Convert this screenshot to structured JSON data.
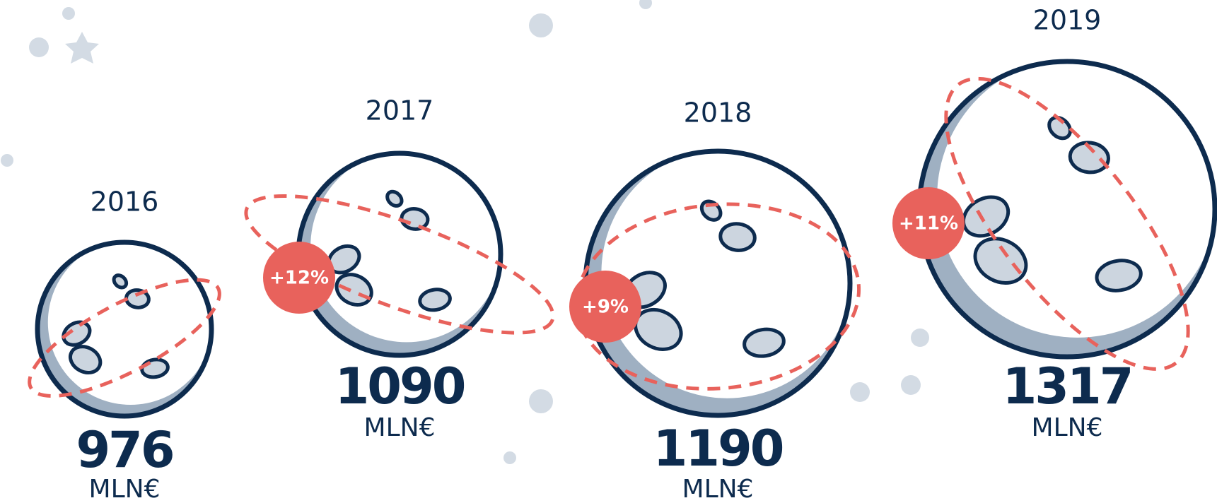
{
  "items": [
    {
      "year": "2016",
      "value": "976",
      "unit": "MLN€"
    },
    {
      "year": "2017",
      "value": "1090",
      "unit": "MLN€"
    },
    {
      "year": "2018",
      "value": "1190",
      "unit": "MLN€"
    },
    {
      "year": "2019",
      "value": "1317",
      "unit": "MLN€"
    }
  ],
  "growth": [
    "+12%",
    "+9%",
    "+11%"
  ]
}
